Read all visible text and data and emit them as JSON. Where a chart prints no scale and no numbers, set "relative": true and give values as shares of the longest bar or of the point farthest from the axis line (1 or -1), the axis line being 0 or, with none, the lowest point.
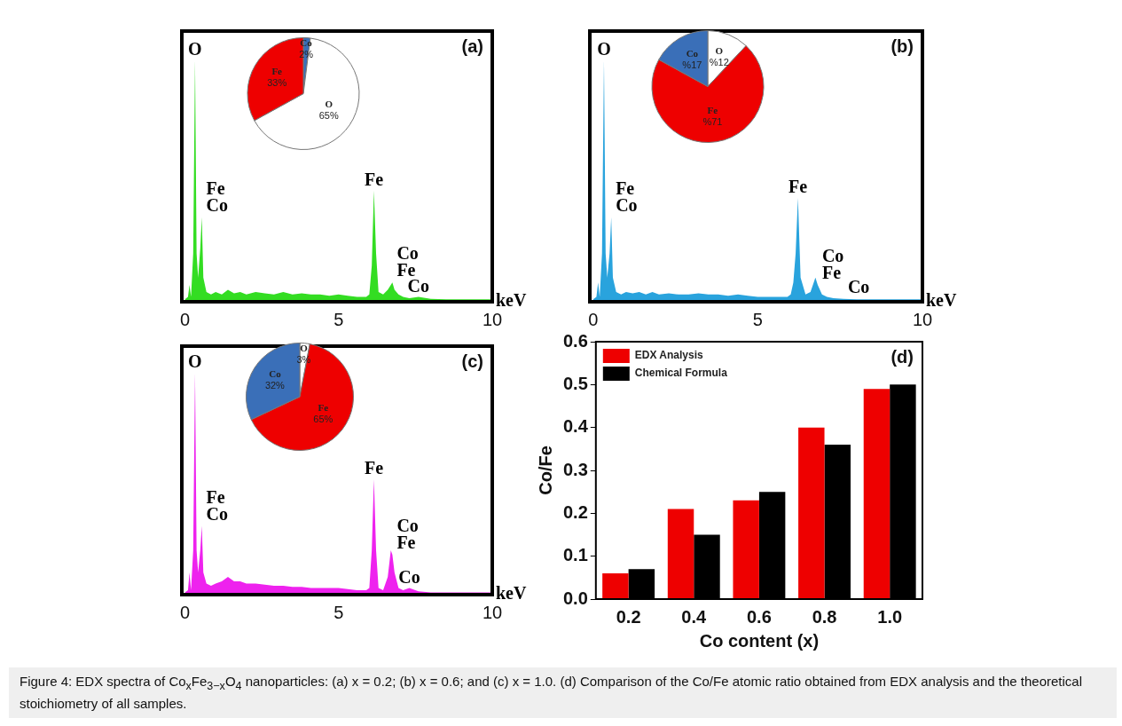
{
  "chart_data": [
    {
      "type": "area",
      "title": "(a)",
      "xlabel": "keV",
      "relative": true,
      "tick_labels": "x",
      "grid": false,
      "xlim": [
        -0.1,
        10
      ],
      "xticks": [
        0,
        5,
        10
      ],
      "x": [
        0,
        0.1,
        0.15,
        0.2,
        0.27,
        0.33,
        0.38,
        0.43,
        0.5,
        0.55,
        0.6,
        0.7,
        0.85,
        1.0,
        1.2,
        1.4,
        1.6,
        1.8,
        2.0,
        2.3,
        2.6,
        2.9,
        3.2,
        3.5,
        3.8,
        4.1,
        4.4,
        4.7,
        5.0,
        5.3,
        5.6,
        5.9,
        6.0,
        6.08,
        6.15,
        6.22,
        6.3,
        6.45,
        6.6,
        6.7,
        6.75,
        6.82,
        6.95,
        7.1,
        7.3,
        7.6,
        8.0,
        8.5,
        9.0,
        9.5,
        10
      ],
      "series": [
        {
          "color": "#33dd22",
          "values": [
            0.01,
            0.02,
            0.07,
            0.02,
            0.2,
            1.0,
            0.2,
            0.1,
            0.22,
            0.35,
            0.1,
            0.04,
            0.03,
            0.04,
            0.03,
            0.05,
            0.035,
            0.04,
            0.03,
            0.04,
            0.035,
            0.03,
            0.04,
            0.03,
            0.035,
            0.03,
            0.03,
            0.025,
            0.03,
            0.025,
            0.02,
            0.02,
            0.03,
            0.15,
            0.46,
            0.2,
            0.04,
            0.03,
            0.05,
            0.07,
            0.08,
            0.05,
            0.03,
            0.02,
            0.015,
            0.02,
            0.012,
            0.01,
            0.01,
            0.01,
            0.01
          ]
        }
      ],
      "annotations": [
        {
          "text": "O",
          "x": 0.33,
          "y": 1.0
        },
        {
          "text": "Fe",
          "x": 0.55,
          "y": 0.35
        },
        {
          "text": "Co",
          "x": 0.55,
          "y": 0.35
        },
        {
          "text": "Fe",
          "x": 6.15,
          "y": 0.46
        },
        {
          "text": "Co",
          "x": 6.75,
          "y": 0.08
        },
        {
          "text": "Fe",
          "x": 6.75,
          "y": 0.08
        },
        {
          "text": "Co",
          "x": 7.6,
          "y": 0.02
        }
      ]
    },
    {
      "type": "pie",
      "categories": [
        "Co",
        "O",
        "Fe"
      ],
      "values": [
        2,
        65,
        33
      ],
      "colors": [
        "#3a6fb8",
        "#ffffff",
        "#ee0000"
      ],
      "value_labels": [
        "2%",
        "65%",
        "33%"
      ]
    },
    {
      "type": "area",
      "title": "(b)",
      "xlabel": "keV",
      "relative": true,
      "tick_labels": "x",
      "grid": false,
      "xlim": [
        -0.1,
        10
      ],
      "xticks": [
        0,
        5,
        10
      ],
      "x": [
        0,
        0.1,
        0.15,
        0.2,
        0.27,
        0.33,
        0.38,
        0.43,
        0.5,
        0.55,
        0.6,
        0.7,
        0.85,
        1.0,
        1.2,
        1.4,
        1.6,
        1.8,
        2.0,
        2.3,
        2.6,
        2.9,
        3.2,
        3.5,
        3.8,
        4.1,
        4.4,
        4.7,
        5.0,
        5.3,
        5.6,
        5.9,
        6.0,
        6.08,
        6.15,
        6.22,
        6.3,
        6.45,
        6.6,
        6.7,
        6.75,
        6.82,
        6.95,
        7.1,
        7.3,
        7.6,
        8.0,
        8.5,
        9.0,
        9.5,
        10
      ],
      "series": [
        {
          "color": "#29a3dd",
          "values": [
            0.01,
            0.02,
            0.08,
            0.02,
            0.2,
            1.0,
            0.2,
            0.1,
            0.2,
            0.35,
            0.1,
            0.04,
            0.03,
            0.04,
            0.035,
            0.04,
            0.03,
            0.04,
            0.03,
            0.035,
            0.03,
            0.03,
            0.035,
            0.03,
            0.03,
            0.025,
            0.03,
            0.025,
            0.02,
            0.02,
            0.02,
            0.02,
            0.03,
            0.08,
            0.2,
            0.43,
            0.1,
            0.03,
            0.04,
            0.08,
            0.1,
            0.07,
            0.03,
            0.02,
            0.015,
            0.012,
            0.01,
            0.01,
            0.01,
            0.01,
            0.01
          ]
        }
      ],
      "annotations": [
        {
          "text": "O",
          "x": 0.33,
          "y": 1.0
        },
        {
          "text": "Fe",
          "x": 0.55,
          "y": 0.35
        },
        {
          "text": "Co",
          "x": 0.55,
          "y": 0.35
        },
        {
          "text": "Fe",
          "x": 6.22,
          "y": 0.43
        },
        {
          "text": "Co",
          "x": 6.82,
          "y": 0.07
        },
        {
          "text": "Fe",
          "x": 6.82,
          "y": 0.07
        },
        {
          "text": "Co",
          "x": 7.6,
          "y": 0.012
        }
      ]
    },
    {
      "type": "pie",
      "categories": [
        "O",
        "Fe",
        "Co"
      ],
      "values": [
        12,
        71,
        17
      ],
      "colors": [
        "#ffffff",
        "#ee0000",
        "#3a6fb8"
      ],
      "value_labels": [
        "%12",
        "%71",
        "%17"
      ]
    },
    {
      "type": "area",
      "title": "(c)",
      "xlabel": "keV",
      "relative": true,
      "tick_labels": "x",
      "grid": false,
      "xlim": [
        -0.1,
        10
      ],
      "xticks": [
        0,
        5,
        10
      ],
      "x": [
        0,
        0.1,
        0.15,
        0.2,
        0.27,
        0.33,
        0.38,
        0.43,
        0.5,
        0.55,
        0.6,
        0.7,
        0.85,
        1.0,
        1.2,
        1.4,
        1.6,
        1.8,
        2.0,
        2.3,
        2.6,
        2.9,
        3.2,
        3.5,
        3.8,
        4.1,
        4.4,
        4.7,
        5.0,
        5.3,
        5.6,
        5.9,
        6.0,
        6.08,
        6.15,
        6.22,
        6.3,
        6.45,
        6.6,
        6.7,
        6.75,
        6.82,
        6.95,
        7.1,
        7.3,
        7.6,
        8.0,
        8.5,
        9.0,
        9.5,
        10
      ],
      "series": [
        {
          "color": "#ee22ee",
          "values": [
            0.01,
            0.02,
            0.1,
            0.02,
            0.2,
            1.0,
            0.2,
            0.1,
            0.2,
            0.31,
            0.1,
            0.05,
            0.04,
            0.05,
            0.06,
            0.08,
            0.06,
            0.06,
            0.05,
            0.05,
            0.045,
            0.04,
            0.04,
            0.035,
            0.035,
            0.03,
            0.03,
            0.03,
            0.03,
            0.025,
            0.02,
            0.02,
            0.03,
            0.2,
            0.52,
            0.2,
            0.03,
            0.02,
            0.08,
            0.2,
            0.18,
            0.1,
            0.03,
            0.02,
            0.03,
            0.015,
            0.01,
            0.01,
            0.01,
            0.01,
            0.01
          ]
        }
      ],
      "annotations": [
        {
          "text": "O",
          "x": 0.33,
          "y": 1.0
        },
        {
          "text": "Fe",
          "x": 0.55,
          "y": 0.31
        },
        {
          "text": "Co",
          "x": 0.55,
          "y": 0.31
        },
        {
          "text": "Fe",
          "x": 6.15,
          "y": 0.52
        },
        {
          "text": "Co",
          "x": 6.75,
          "y": 0.18
        },
        {
          "text": "Fe",
          "x": 6.75,
          "y": 0.18
        },
        {
          "text": "Co",
          "x": 7.3,
          "y": 0.03
        }
      ]
    },
    {
      "type": "pie",
      "categories": [
        "O",
        "Fe",
        "Co"
      ],
      "values": [
        3,
        65,
        32
      ],
      "colors": [
        "#ffffff",
        "#ee0000",
        "#3a6fb8"
      ],
      "value_labels": [
        "3%",
        "65%",
        "32%"
      ]
    },
    {
      "type": "bar",
      "title": "(d)",
      "xlabel": "Co content (x)",
      "ylabel": "Co/Fe",
      "categories": [
        "0.2",
        "0.4",
        "0.6",
        "0.8",
        "1.0"
      ],
      "ylim": [
        0,
        0.6
      ],
      "yticks": [
        {
          "value": 0,
          "label": "0.0"
        },
        0.1,
        0.2,
        0.3,
        0.4,
        0.5,
        0.6
      ],
      "grid": false,
      "legend": "top left",
      "series": [
        {
          "name": "EDX Analysis",
          "color": "#ee0000",
          "values": [
            0.06,
            0.21,
            0.23,
            0.4,
            0.49
          ]
        },
        {
          "name": "Chemical Formula",
          "color": "#000000",
          "values": [
            0.07,
            0.15,
            0.25,
            0.36,
            0.5
          ]
        }
      ],
      "annotations": [
        "Figure 4: EDX spectra of Co$_{x}$Fe$_{3−x}$O$_{4}$ nanoparticles: (a) x = 0.2; (b) x = 0.6; and (c) x = 1.0. (d) Comparison of the Co/Fe atomic ratio obtained from EDX analysis and the theoretical stoichiometry of all samples."
      ]
    }
  ]
}
